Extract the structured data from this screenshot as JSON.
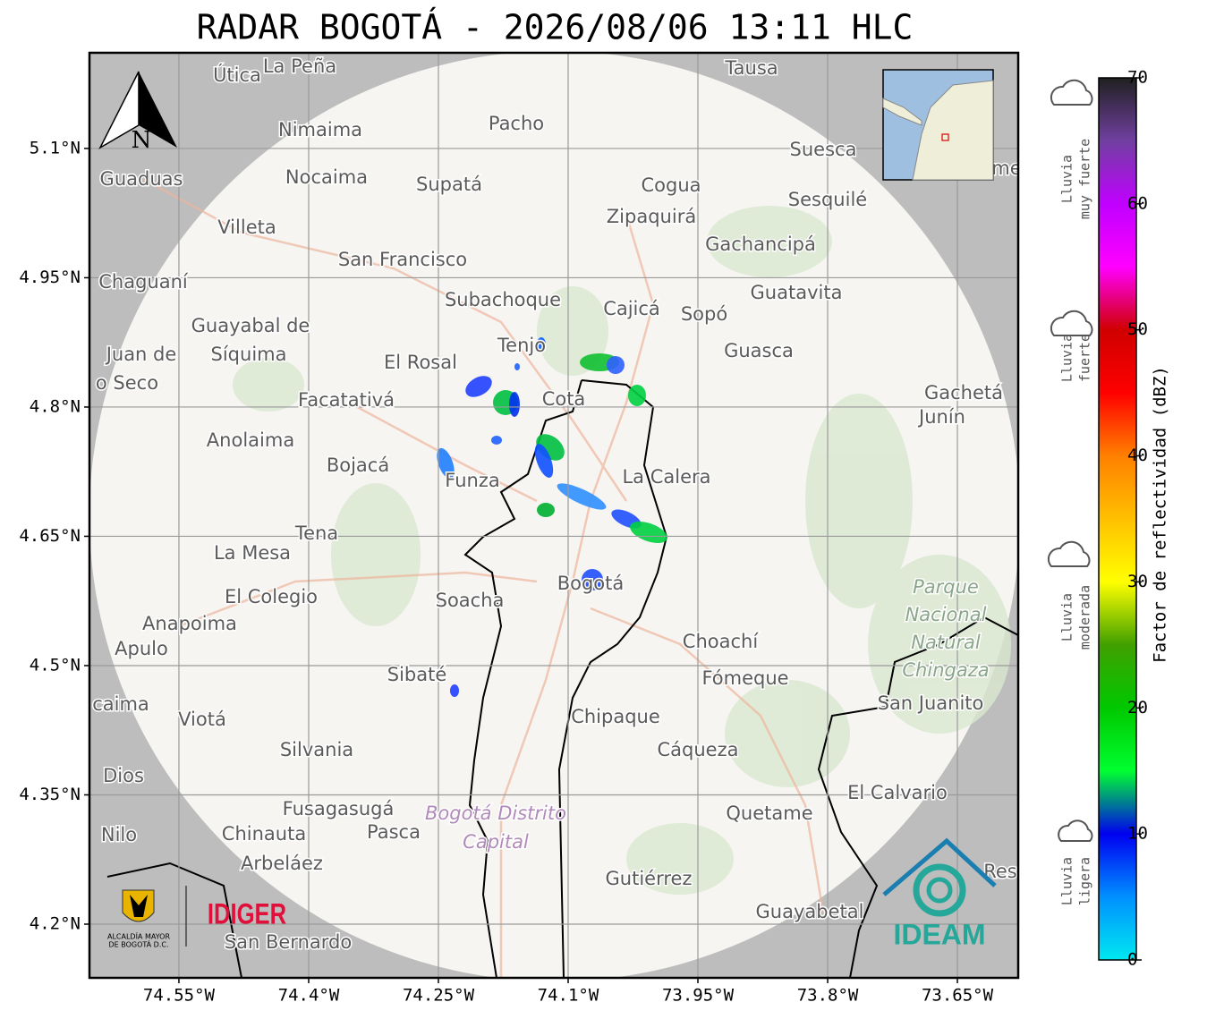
{
  "map": {
    "title": "RADAR BOGOTÁ - 2026/08/06 13:11 HLC",
    "xlim": [
      -74.6534,
      -73.5797
    ],
    "ylim": [
      4.1377,
      5.211
    ],
    "xticks": [
      {
        "value": -74.55,
        "label": "74.55°W"
      },
      {
        "value": -74.4,
        "label": "74.4°W"
      },
      {
        "value": -74.25,
        "label": "74.25°W"
      },
      {
        "value": -74.1,
        "label": "74.1°W"
      },
      {
        "value": -73.95,
        "label": "73.95°W"
      },
      {
        "value": -73.8,
        "label": "73.8°W"
      },
      {
        "value": -73.65,
        "label": "73.65°W"
      }
    ],
    "yticks": [
      {
        "value": 5.1,
        "label": "5.1°N"
      },
      {
        "value": 4.95,
        "label": "4.95°N"
      },
      {
        "value": 4.8,
        "label": "4.8°N"
      },
      {
        "value": 4.65,
        "label": "4.65°N"
      },
      {
        "value": 4.5,
        "label": "4.5°N"
      },
      {
        "value": 4.35,
        "label": "4.35°N"
      },
      {
        "value": 4.2,
        "label": "4.2°N"
      }
    ],
    "grid": true,
    "north": "N",
    "places": [
      "Útica",
      "La Peña",
      "Tausa",
      "Pacho",
      "Nimaima",
      "Suesca",
      "Guaduas",
      "Nocaima",
      "Supatá",
      "Cogua",
      "Sesquilé",
      "Zipaquirá",
      "Villeta",
      "Gachancipá",
      "San Francisco",
      "Chaguaní",
      "Guatavita",
      "Subachoque",
      "Cajicá",
      "Sopó",
      "Guayabal de",
      "Síquima",
      "Tenjo",
      "Guasca",
      "Juan de",
      "o Seco",
      "El Rosal",
      "Facatativá",
      "Cota",
      "Gachetá",
      "Junín",
      "Anolaima",
      "Bojacá",
      "La Calera",
      "Funza",
      "Tena",
      "La Mesa",
      "Bogotá",
      "El Colegio",
      "Soacha",
      "Parque",
      "Nacional",
      "Natural",
      "Chingaza",
      "Anapoima",
      "Apulo",
      "Choachí",
      "Sibaté",
      "Fómeque",
      "San Juanito",
      "caima",
      "Viotá",
      "Chipaque",
      "Silvania",
      "Cáqueza",
      "Dios",
      "El Calvario",
      "Fusagasugá",
      "Quetame",
      "Bogotá Distrito",
      "Capital",
      "Nilo",
      "Chinauta",
      "Pasca",
      "Arbeláez",
      "Gutiérrez",
      "Guayabetal",
      "San Bernardo",
      "Res",
      "me"
    ],
    "logos": {
      "alcaldia": [
        "ALCALDÍA MAYOR",
        "DE BOGOTÁ D.C."
      ],
      "idiger": "IDIGER",
      "ideam": "IDEAM"
    }
  },
  "colorbar": {
    "label": "Factor de reflectividad (dBZ)",
    "lim": [
      0,
      70
    ],
    "ticks": [
      0,
      10,
      20,
      30,
      40,
      50,
      60,
      70
    ],
    "colors": [
      "#00e8f0",
      "#0090ff",
      "#0000f0",
      "#00ff30",
      "#00c800",
      "#40a000",
      "#ffff00",
      "#ffc000",
      "#ff8000",
      "#ff0000",
      "#d00000",
      "#ff00ff",
      "#c000ff",
      "#7040a0",
      "#202020"
    ],
    "intensity": [
      [
        "Lluvia",
        "muy fuerte"
      ],
      [
        "Lluvia",
        "fuerte"
      ],
      [
        "Lluvia",
        "moderada"
      ],
      [
        "Lluvia",
        "ligera"
      ]
    ]
  }
}
